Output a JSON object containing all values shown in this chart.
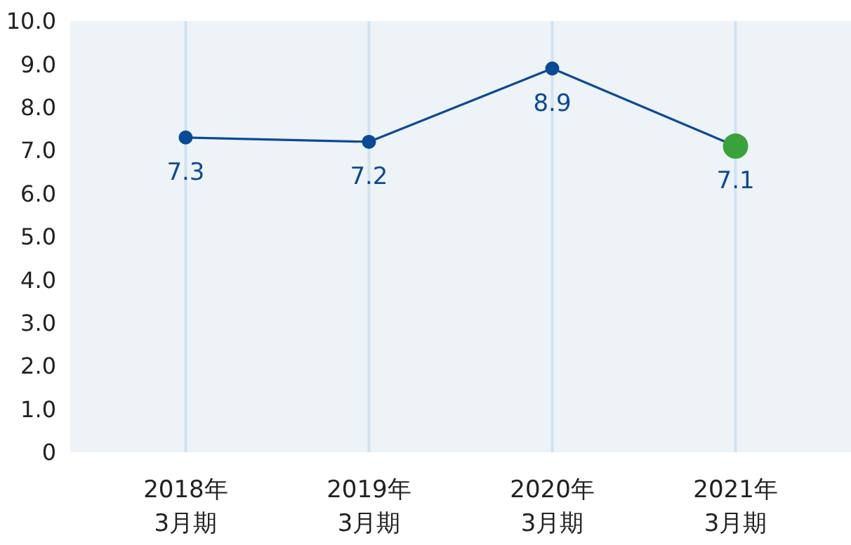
{
  "chart_data": {
    "type": "line",
    "categories": [
      "2018年\n3月期",
      "2019年\n3月期",
      "2020年\n3月期",
      "2021年\n3月期"
    ],
    "series": [
      {
        "color": "#0b4a96",
        "colors": [
          "#0b4a96",
          "#0b4a96",
          "#0b4a96",
          "#3aa23a"
        ],
        "values": [
          7.3,
          7.2,
          8.9,
          7.1
        ]
      }
    ],
    "ylim": [
      0,
      10
    ],
    "yticks": [
      0,
      {
        "value": 1,
        "label": "1.0"
      },
      {
        "value": 2,
        "label": "2.0"
      },
      {
        "value": 3,
        "label": "3.0"
      },
      {
        "value": 4,
        "label": "4.0"
      },
      {
        "value": 5,
        "label": "5.0"
      },
      {
        "value": 6,
        "label": "6.0"
      },
      {
        "value": 7,
        "label": "7.0"
      },
      {
        "value": 8,
        "label": "8.0"
      },
      {
        "value": 9,
        "label": "9.0"
      },
      {
        "value": 10,
        "label": "10.0"
      }
    ],
    "grid": "x",
    "marker": "circle",
    "line_style": "solid",
    "data_labels": true
  }
}
